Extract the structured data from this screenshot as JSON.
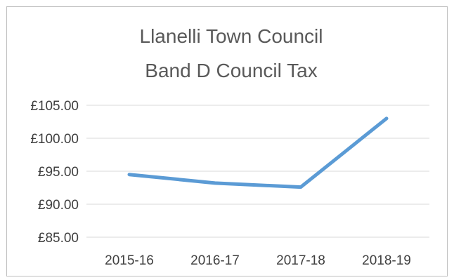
{
  "chart_data": {
    "type": "line",
    "title_lines": [
      "Llanelli Town Council",
      "Band D Council Tax"
    ],
    "categories": [
      "2015-16",
      "2016-17",
      "2017-18",
      "2018-19"
    ],
    "series": [
      {
        "values": [
          94.5,
          93.2,
          92.6,
          103.0
        ]
      }
    ],
    "y_ticks": [
      85,
      90,
      95,
      100,
      105
    ],
    "y_tick_labels": [
      "£85.00",
      "£90.00",
      "£95.00",
      "£100.00",
      "£105.00"
    ],
    "ylim": [
      85,
      105
    ],
    "grid": true,
    "legend": "none",
    "colors": {
      "line": "#5b9bd5",
      "grid": "#d9d9d9",
      "border": "#bfbfbf",
      "text": "#404040",
      "title": "#595959"
    }
  }
}
